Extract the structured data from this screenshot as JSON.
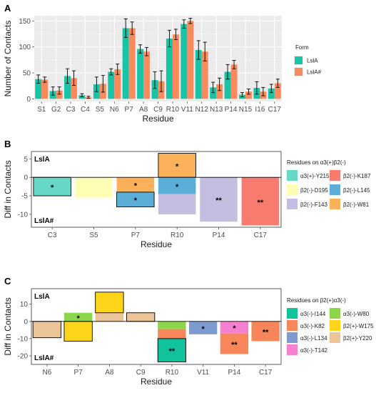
{
  "chart_data": [
    {
      "id": "A",
      "type": "bar",
      "panel_label": "A",
      "xlabel": "Residue",
      "ylabel": "Number of Contacts",
      "ylim": [
        -5,
        160
      ],
      "yticks": [
        0,
        50,
        100,
        150
      ],
      "grid": true,
      "legend_title": "Form",
      "legend_position": "right",
      "categories": [
        "S1",
        "G2",
        "C3",
        "C4",
        "S5",
        "N6",
        "P7",
        "A8",
        "C9",
        "R10",
        "V11",
        "N12",
        "N13",
        "P14",
        "N15",
        "I16",
        "C17"
      ],
      "series": [
        {
          "name": "LslA",
          "color": "#19c3a5",
          "values": [
            38,
            15,
            44,
            7,
            28,
            52,
            136,
            96,
            36,
            116,
            144,
            94,
            22,
            52,
            8,
            21,
            20
          ],
          "errors": [
            8,
            8,
            14,
            3,
            14,
            6,
            18,
            8,
            16,
            16,
            8,
            18,
            10,
            14,
            4,
            12,
            8
          ]
        },
        {
          "name": "LslA#",
          "color": "#fa8a5c",
          "values": [
            37,
            16,
            40,
            3,
            29,
            57,
            136,
            91,
            34,
            124,
            150,
            91,
            28,
            66,
            14,
            14,
            30
          ],
          "errors": [
            5,
            7,
            14,
            2,
            16,
            10,
            12,
            8,
            20,
            10,
            5,
            18,
            12,
            8,
            5,
            8,
            8
          ]
        }
      ]
    },
    {
      "id": "B",
      "type": "bar",
      "panel_label": "B",
      "xlabel": "Residue",
      "ylabel": "Diff in Contacts",
      "ylim": [
        -13.5,
        7
      ],
      "yticks": [
        -10,
        -5,
        0,
        5
      ],
      "top_label": "LslA",
      "bottom_label": "LslA#",
      "legend_title": "Residues on α3(+)β2(-)",
      "legend_position": "right",
      "legend": [
        {
          "name": "α3(+)-Y215",
          "color": "#66d9c6"
        },
        {
          "name": "β2(-)-K187",
          "color": "#f77b6e"
        },
        {
          "name": "β2(-)-D195",
          "color": "#fdfdb3"
        },
        {
          "name": "β2(-)-L145",
          "color": "#5aaed8"
        },
        {
          "name": "β2(-)-F143",
          "color": "#c5bde0"
        },
        {
          "name": "β2(-)-W81",
          "color": "#fbb05a"
        }
      ],
      "categories": [
        "C3",
        "S5",
        "P7",
        "R10",
        "P14",
        "C17"
      ],
      "segments": [
        {
          "category": "C3",
          "from": 0,
          "to": -5,
          "series": "α3(+)-Y215",
          "star": "*",
          "outlined": true
        },
        {
          "category": "S5",
          "from": 0,
          "to": -5.5,
          "series": "β2(-)-D195",
          "star": ""
        },
        {
          "category": "P7",
          "from": 0,
          "to": -4,
          "series": "β2(-)-W81",
          "star": "*"
        },
        {
          "category": "P7",
          "from": -4,
          "to": -8,
          "series": "β2(-)-L145",
          "star": "*",
          "outlined": true
        },
        {
          "category": "R10",
          "from": 0,
          "to": 6.5,
          "series": "β2(-)-W81",
          "star": "*",
          "outlined": true
        },
        {
          "category": "R10",
          "from": 0,
          "to": -4.5,
          "series": "β2(-)-L145",
          "star": "*"
        },
        {
          "category": "R10",
          "from": -4.5,
          "to": -10,
          "series": "β2(-)-F143",
          "star": ""
        },
        {
          "category": "P14",
          "from": 0,
          "to": -12,
          "series": "β2(-)-F143",
          "star": "**"
        },
        {
          "category": "C17",
          "from": 0,
          "to": -13,
          "series": "β2(-)-K187",
          "star": "**"
        }
      ]
    },
    {
      "id": "C",
      "type": "bar",
      "panel_label": "C",
      "xlabel": "Residue",
      "ylabel": "Diff in Contacts",
      "ylim": [
        -25,
        19
      ],
      "yticks": [
        -20,
        -10,
        0,
        10
      ],
      "top_label": "LslA",
      "bottom_label": "LslA#",
      "legend_title": "Residues on β2(+)α3(-)",
      "legend_position": "right",
      "legend": [
        {
          "name": "α3(-)-I144",
          "color": "#11c29a"
        },
        {
          "name": "α3(-)-W80",
          "color": "#8bd64a"
        },
        {
          "name": "α3(-)-K82",
          "color": "#f7875a"
        },
        {
          "name": "β2(+)-W175",
          "color": "#fed51b"
        },
        {
          "name": "α3(-)-L134",
          "color": "#7d9bcf"
        },
        {
          "name": "β2(+)-Y220",
          "color": "#ebc499"
        },
        {
          "name": "α3(-)-T142",
          "color": "#f67fd0"
        }
      ],
      "categories": [
        "N6",
        "P7",
        "A8",
        "C9",
        "R10",
        "V11",
        "P14",
        "C17"
      ],
      "segments": [
        {
          "category": "N6",
          "from": 0,
          "to": -9.5,
          "series": "β2(+)-Y220",
          "star": "",
          "outlined": true
        },
        {
          "category": "P7",
          "from": 0,
          "to": 5,
          "series": "α3(-)-W80",
          "star": "*"
        },
        {
          "category": "P7",
          "from": 0,
          "to": -11.5,
          "series": "β2(+)-W175",
          "star": "",
          "outlined": true
        },
        {
          "category": "A8",
          "from": 0,
          "to": 5,
          "series": "β2(+)-Y220",
          "star": ""
        },
        {
          "category": "A8",
          "from": 5,
          "to": 17,
          "series": "β2(+)-W175",
          "star": "",
          "outlined": true
        },
        {
          "category": "C9",
          "from": 0,
          "to": 5,
          "series": "β2(+)-Y220",
          "star": "",
          "outlined": true
        },
        {
          "category": "R10",
          "from": 0,
          "to": -4.5,
          "series": "α3(-)-W80",
          "star": ""
        },
        {
          "category": "R10",
          "from": -4.5,
          "to": -10,
          "series": "α3(-)-K82",
          "star": ""
        },
        {
          "category": "R10",
          "from": -10,
          "to": -23.5,
          "series": "α3(-)-I144",
          "star": "**",
          "outlined": true
        },
        {
          "category": "V11",
          "from": 0,
          "to": -7.5,
          "series": "α3(-)-L134",
          "star": "*"
        },
        {
          "category": "P14",
          "from": 0,
          "to": -7,
          "series": "α3(-)-T142",
          "star": "*"
        },
        {
          "category": "P14",
          "from": -7,
          "to": -19,
          "series": "α3(-)-K82",
          "star": "**"
        },
        {
          "category": "C17",
          "from": 0,
          "to": -11.5,
          "series": "α3(-)-K82",
          "star": "**"
        }
      ]
    }
  ]
}
